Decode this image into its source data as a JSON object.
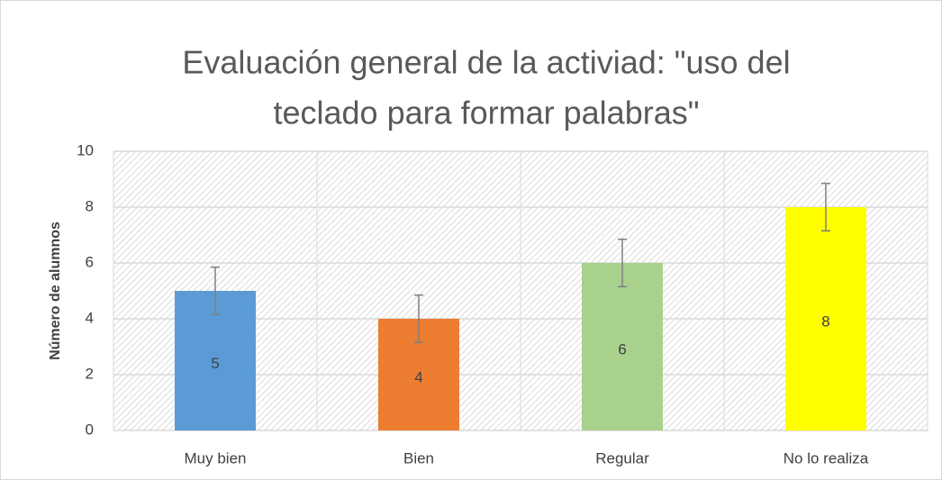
{
  "chart_data": {
    "type": "bar",
    "title": [
      "Evaluación general de la activiad: \"uso del",
      "teclado para formar palabras\""
    ],
    "ylabel": "Número de alumnos",
    "categories": [
      "Muy bien",
      "Bien",
      "Regular",
      "No lo realiza"
    ],
    "values": [
      5,
      4,
      6,
      8
    ],
    "errors": [
      0.85,
      0.85,
      0.85,
      0.85
    ],
    "colors": [
      "#5b9bd5",
      "#ed7d31",
      "#a9d18e",
      "#ffff00"
    ],
    "ylim": [
      0,
      10
    ],
    "yticks": [
      0,
      2,
      4,
      6,
      8,
      10
    ],
    "grid": true
  }
}
